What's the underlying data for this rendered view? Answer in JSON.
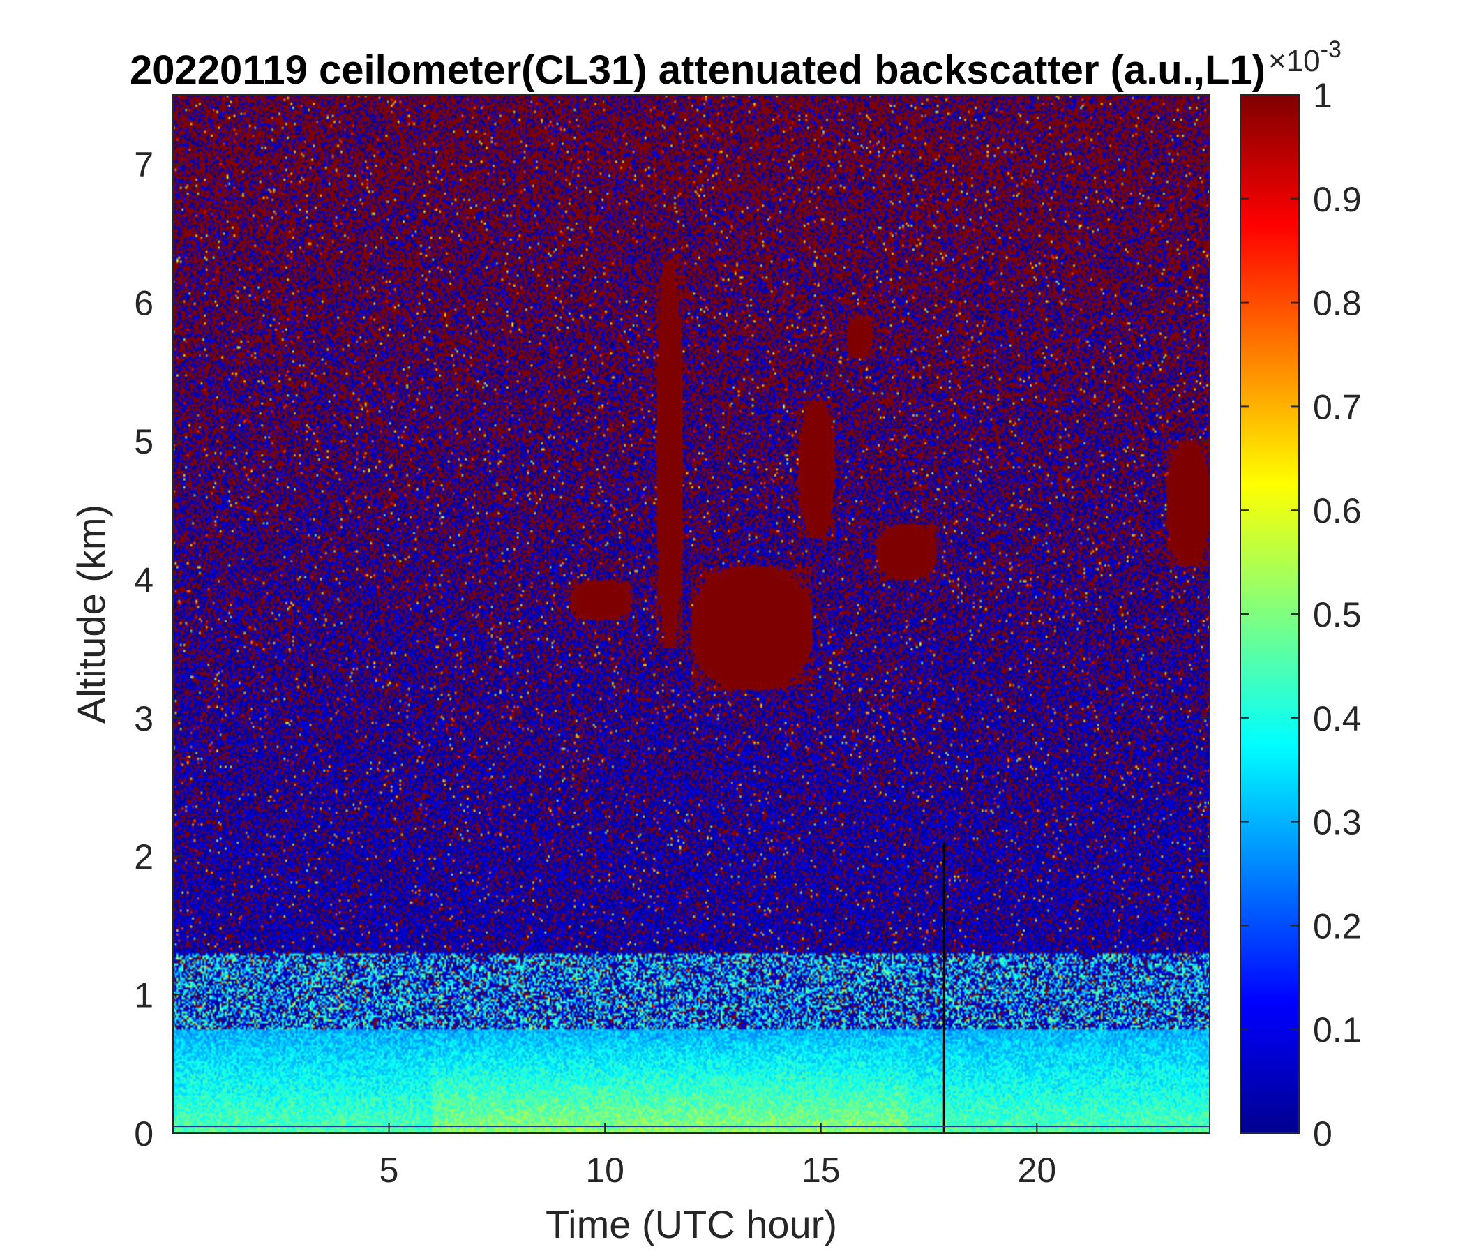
{
  "chart_data": {
    "type": "heatmap",
    "title": "20220119 ceilometer(CL31) attenuated backscatter (a.u.,L1)",
    "xlabel": "Time (UTC hour)",
    "ylabel": "Altitude (km)",
    "xlim": [
      0,
      24
    ],
    "ylim": [
      0,
      7.5
    ],
    "xticks": [
      5,
      10,
      15,
      20
    ],
    "yticks": [
      0,
      1,
      2,
      3,
      4,
      5,
      6,
      7
    ],
    "colorbar": {
      "colormap": "jet",
      "range": [
        0,
        1
      ],
      "ticks": [
        0,
        0.1,
        0.2,
        0.3,
        0.4,
        0.5,
        0.6,
        0.7,
        0.8,
        0.9,
        1
      ],
      "tick_labels": [
        "0",
        "0.1",
        "0.2",
        "0.3",
        "0.4",
        "0.5",
        "0.6",
        "0.7",
        "0.8",
        "0.9",
        "1"
      ],
      "exponent_label": "×10",
      "exponent_power": "-3"
    },
    "features": [
      {
        "kind": "boundary-layer",
        "description": "high backscatter near surface",
        "altitude_km": [
          0,
          0.7
        ],
        "time_h": [
          0,
          24
        ],
        "value": 0.5
      },
      {
        "kind": "cloud",
        "time_h": [
          9.2,
          10.6
        ],
        "altitude_km": [
          3.7,
          4.0
        ],
        "value": 1
      },
      {
        "kind": "cloud",
        "time_h": [
          12.0,
          14.8
        ],
        "altitude_km": [
          3.2,
          4.1
        ],
        "value": 1
      },
      {
        "kind": "cloud",
        "time_h": [
          14.5,
          15.3
        ],
        "altitude_km": [
          4.3,
          5.3
        ],
        "value": 1
      },
      {
        "kind": "cloud",
        "time_h": [
          16.3,
          17.7
        ],
        "altitude_km": [
          4.0,
          4.4
        ],
        "value": 1
      },
      {
        "kind": "cloud",
        "time_h": [
          23.0,
          24.0
        ],
        "altitude_km": [
          4.1,
          5.0
        ],
        "value": 1
      },
      {
        "kind": "streak",
        "time_h": [
          11.2,
          11.8
        ],
        "altitude_km": [
          3.5,
          6.3
        ],
        "value": 1
      },
      {
        "kind": "streak",
        "time_h": [
          15.6,
          16.2
        ],
        "altitude_km": [
          5.6,
          5.9
        ],
        "value": 1
      },
      {
        "kind": "data-gap-line",
        "time_h": 17.85
      }
    ]
  }
}
